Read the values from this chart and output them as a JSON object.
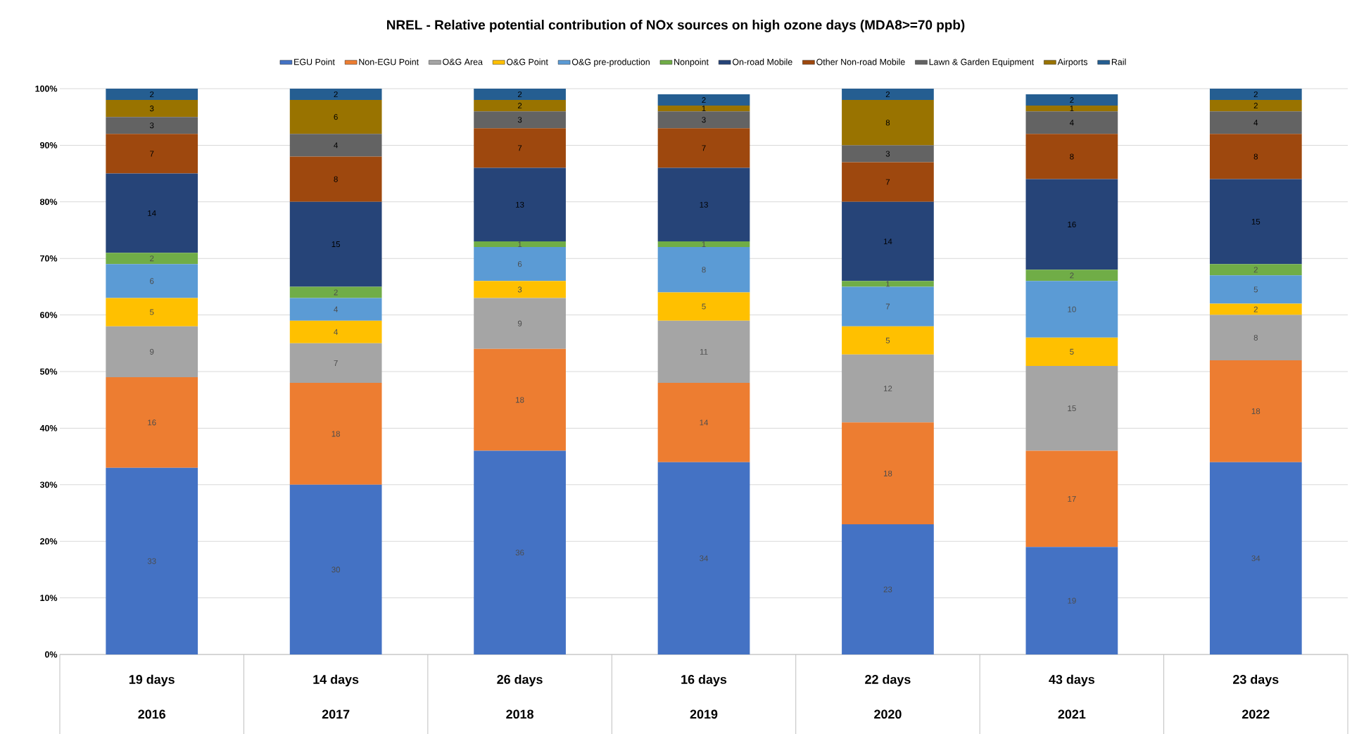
{
  "chart_data": {
    "type": "bar",
    "stacked": true,
    "title": "**NREL - Relative potential contribution of NOx sources on high ozone days (MDA8>=70 ppb)**",
    "categories": [
      "2016",
      "2017",
      "2018",
      "2019",
      "2020",
      "2021",
      "2022"
    ],
    "annotations": [
      "19 days",
      "14 days",
      "26 days",
      "16 days",
      "22 days",
      "43 days",
      "23 days"
    ],
    "series": [
      {
        "name": "EGU Point",
        "color": "#4472c4",
        "values": [
          33,
          30,
          36,
          34,
          23,
          19,
          34
        ]
      },
      {
        "name": "Non-EGU Point",
        "color": "#ed7d31",
        "values": [
          16,
          18,
          18,
          14,
          18,
          17,
          18
        ]
      },
      {
        "name": "O&G Area",
        "color": "#a5a5a5",
        "values": [
          9,
          7,
          9,
          11,
          12,
          15,
          8
        ]
      },
      {
        "name": "O&G Point",
        "color": "#ffc000",
        "values": [
          5,
          4,
          3,
          5,
          5,
          5,
          2
        ]
      },
      {
        "name": "O&G pre-production",
        "color": "#5b9bd5",
        "values": [
          6,
          4,
          6,
          8,
          7,
          10,
          5
        ]
      },
      {
        "name": "Nonpoint",
        "color": "#70ad47",
        "values": [
          2,
          2,
          1,
          1,
          1,
          2,
          2
        ]
      },
      {
        "name": "On-road Mobile",
        "color": "#264478",
        "values": [
          14,
          15,
          13,
          13,
          14,
          16,
          15
        ]
      },
      {
        "name": "Other Non-road Mobile",
        "color": "#9e480e",
        "values": [
          7,
          8,
          7,
          7,
          7,
          8,
          8
        ]
      },
      {
        "name": "Lawn & Garden Equipment",
        "color": "#636363",
        "values": [
          3,
          4,
          3,
          3,
          3,
          4,
          4
        ]
      },
      {
        "name": "Airports",
        "color": "#997300",
        "values": [
          3,
          6,
          2,
          1,
          8,
          1,
          2
        ]
      },
      {
        "name": "Rail",
        "color": "#255e91",
        "values": [
          2,
          2,
          2,
          2,
          2,
          2,
          2
        ]
      }
    ],
    "ylim": [
      0,
      100
    ],
    "yticks": [
      {
        "value": 0,
        "label": "0%"
      },
      {
        "value": 10,
        "label": "10%"
      },
      {
        "value": 20,
        "label": "20%"
      },
      {
        "value": 30,
        "label": "30%"
      },
      {
        "value": 40,
        "label": "40%"
      },
      {
        "value": 50,
        "label": "50%"
      },
      {
        "value": 60,
        "label": "60%"
      },
      {
        "value": 70,
        "label": "70%"
      },
      {
        "value": 80,
        "label": "80%"
      },
      {
        "value": 90,
        "label": "90%"
      },
      {
        "value": 100,
        "label": "100%"
      }
    ],
    "grid": "y",
    "legend": "top",
    "data_labels": true
  }
}
